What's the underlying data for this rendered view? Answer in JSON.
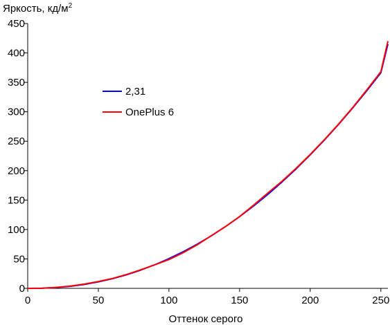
{
  "chart_data": {
    "type": "line",
    "title": "",
    "ylabel": "Яркость, кд/м",
    "ylabel_superscript": "2",
    "xlabel": "Оттенок серого",
    "xlim": [
      0,
      255
    ],
    "ylim": [
      0,
      450
    ],
    "x_ticks": [
      0,
      50,
      100,
      150,
      200,
      250
    ],
    "y_ticks": [
      0,
      50,
      100,
      150,
      200,
      250,
      300,
      350,
      400,
      450
    ],
    "grid": false,
    "legend_position": "left",
    "series": [
      {
        "name": "2,31",
        "color": "#0000ff",
        "x": [
          0,
          10,
          20,
          30,
          40,
          50,
          60,
          70,
          80,
          90,
          100,
          110,
          120,
          130,
          140,
          150,
          160,
          170,
          180,
          190,
          200,
          210,
          220,
          230,
          240,
          250,
          255
        ],
        "values": [
          0,
          0.2,
          1.4,
          3.4,
          6.6,
          11.0,
          16.4,
          23.0,
          31.0,
          40.1,
          50.5,
          62.1,
          75.1,
          89.3,
          104.9,
          121.8,
          140.1,
          159.7,
          180.7,
          203.0,
          226.8,
          251.9,
          278.4,
          306.3,
          335.6,
          366.3,
          415.0
        ]
      },
      {
        "name": "OnePlus 6",
        "color": "#ff0000",
        "x": [
          0,
          10,
          20,
          30,
          40,
          50,
          60,
          70,
          80,
          90,
          100,
          110,
          120,
          130,
          140,
          150,
          160,
          170,
          180,
          190,
          200,
          210,
          220,
          230,
          240,
          250,
          255
        ],
        "values": [
          0,
          0.3,
          1.6,
          3.8,
          7.2,
          11.6,
          16.8,
          23.5,
          31.5,
          40.0,
          49.0,
          60.5,
          74.0,
          89.5,
          105.0,
          122.0,
          141.5,
          162.0,
          182.0,
          204.0,
          227.5,
          252.5,
          279.0,
          307.0,
          337.0,
          368.0,
          420.0
        ]
      }
    ]
  }
}
